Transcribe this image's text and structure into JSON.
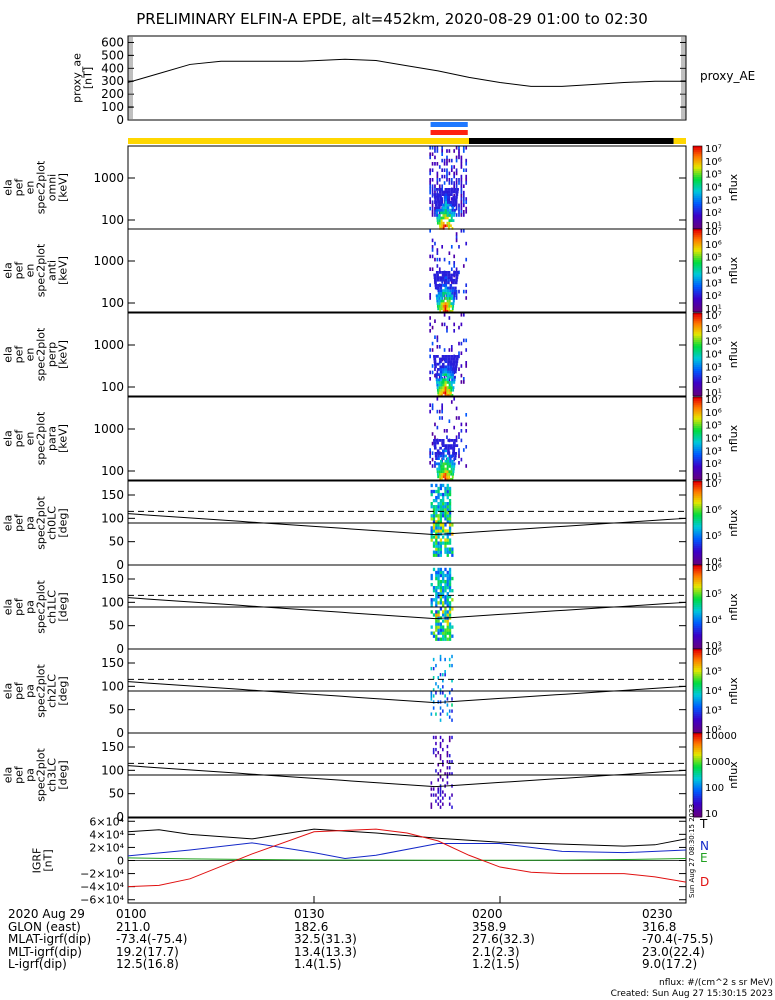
{
  "title": "PRELIMINARY ELFIN-A EPDE, alt=452km, 2020-08-29 01:00 to 02:30",
  "colors": {
    "yellow": "#ffd700",
    "blue": "#1e78ff",
    "red": "#ff2010",
    "black": "#000000",
    "T": "#000000",
    "N": "#1428c8",
    "E": "#20a020",
    "D": "#e01010"
  },
  "chart_data": [
    {
      "type": "line",
      "panel": "proxy_ae",
      "ylabel": [
        "proxy_ae",
        "[nT]"
      ],
      "right_label": "proxy_AE",
      "yticks": [
        0,
        100,
        200,
        300,
        400,
        500,
        600
      ],
      "ylim": [
        0,
        650
      ],
      "x_minutes": [
        0,
        5,
        10,
        15,
        20,
        28,
        35,
        40,
        45,
        50,
        55,
        60,
        65,
        70,
        75,
        80,
        85,
        90
      ],
      "values": [
        290,
        360,
        430,
        455,
        455,
        455,
        470,
        460,
        420,
        380,
        330,
        290,
        260,
        260,
        275,
        290,
        300,
        300
      ]
    },
    {
      "type": "heatmap",
      "panel": "spec_omni",
      "ylabel": [
        "ela",
        "pef",
        "en",
        "spec2plot",
        "omni",
        "[keV]"
      ],
      "yticks": [
        "1000",
        "100"
      ],
      "ylim": [
        50,
        7000
      ],
      "colorbar_label": "nflux",
      "colorbar_ticks": [
        "10^7",
        "10^6",
        "10^5",
        "10^4",
        "10^3",
        "10^2",
        "10^1"
      ]
    },
    {
      "type": "heatmap",
      "panel": "spec_anti",
      "ylabel": [
        "ela",
        "pef",
        "en",
        "spec2plot",
        "anti",
        "[keV]"
      ],
      "yticks": [
        "1000",
        "100"
      ],
      "ylim": [
        50,
        7000
      ],
      "colorbar_label": "nflux",
      "colorbar_ticks": [
        "10^7",
        "10^6",
        "10^5",
        "10^4",
        "10^3",
        "10^2",
        "10^1"
      ]
    },
    {
      "type": "heatmap",
      "panel": "spec_perp",
      "ylabel": [
        "ela",
        "pef",
        "en",
        "spec2plot",
        "perp",
        "[keV]"
      ],
      "yticks": [
        "1000",
        "100"
      ],
      "ylim": [
        50,
        7000
      ],
      "colorbar_label": "nflux",
      "colorbar_ticks": [
        "10^7",
        "10^6",
        "10^5",
        "10^4",
        "10^3",
        "10^2",
        "10^1"
      ]
    },
    {
      "type": "heatmap",
      "panel": "spec_para",
      "ylabel": [
        "ela",
        "pef",
        "en",
        "spec2plot",
        "para",
        "[keV]"
      ],
      "yticks": [
        "1000",
        "100"
      ],
      "ylim": [
        50,
        7000
      ],
      "colorbar_label": "nflux",
      "colorbar_ticks": [
        "10^7",
        "10^6",
        "10^5",
        "10^4",
        "10^3",
        "10^2",
        "10^1"
      ]
    },
    {
      "type": "heatmap",
      "panel": "pa_ch0",
      "ylabel": [
        "ela",
        "pef",
        "pa",
        "spec2plot",
        "ch0LC",
        "[deg]"
      ],
      "yticks": [
        0,
        50,
        100,
        150
      ],
      "ylim": [
        0,
        180
      ],
      "colorbar_label": "nflux",
      "colorbar_ticks": [
        "10^7",
        "10^6",
        "10^5",
        "10^4"
      ]
    },
    {
      "type": "heatmap",
      "panel": "pa_ch1",
      "ylabel": [
        "ela",
        "pef",
        "pa",
        "spec2plot",
        "ch1LC",
        "[deg]"
      ],
      "yticks": [
        0,
        50,
        100,
        150
      ],
      "ylim": [
        0,
        180
      ],
      "colorbar_label": "nflux",
      "colorbar_ticks": [
        "10^6",
        "10^5",
        "10^4",
        "10^3"
      ]
    },
    {
      "type": "heatmap",
      "panel": "pa_ch2",
      "ylabel": [
        "ela",
        "pef",
        "pa",
        "spec2plot",
        "ch2LC",
        "[deg]"
      ],
      "yticks": [
        0,
        50,
        100,
        150
      ],
      "ylim": [
        0,
        180
      ],
      "colorbar_label": "nflux",
      "colorbar_ticks": [
        "10^6",
        "10^5",
        "10^4",
        "10^3",
        "10^2"
      ]
    },
    {
      "type": "heatmap",
      "panel": "pa_ch3",
      "ylabel": [
        "ela",
        "pef",
        "pa",
        "spec2plot",
        "ch3LC",
        "[deg]"
      ],
      "yticks": [
        0,
        50,
        100,
        150
      ],
      "ylim": [
        0,
        180
      ],
      "colorbar_label": "nflux",
      "colorbar_ticks": [
        "10000",
        "1000",
        "100",
        "10"
      ]
    },
    {
      "type": "line",
      "panel": "igrf",
      "ylabel": [
        "IGRF",
        "[nT]"
      ],
      "yticks": [
        "6×10^4",
        "4×10^4",
        "2×10^4",
        "0",
        "−2×10^4",
        "−4×10^4",
        "−6×10^4"
      ],
      "ylim": [
        -65000,
        65000
      ],
      "series": [
        {
          "name": "T",
          "x_minutes": [
            0,
            5,
            10,
            20,
            30,
            40,
            50,
            60,
            70,
            80,
            85,
            90
          ],
          "values": [
            44000,
            47000,
            40000,
            33000,
            48000,
            42000,
            34000,
            28000,
            25000,
            22000,
            24000,
            33000
          ]
        },
        {
          "name": "N",
          "x_minutes": [
            0,
            10,
            20,
            30,
            35,
            40,
            50,
            60,
            65,
            70,
            80,
            90
          ],
          "values": [
            7000,
            16000,
            27000,
            12000,
            3000,
            8000,
            26000,
            26000,
            20000,
            14000,
            12000,
            16000
          ]
        },
        {
          "name": "E",
          "x_minutes": [
            0,
            10,
            20,
            30,
            40,
            50,
            60,
            70,
            80,
            90
          ],
          "values": [
            4000,
            2500,
            1500,
            800,
            500,
            400,
            400,
            500,
            1500,
            3000
          ]
        },
        {
          "name": "D",
          "x_minutes": [
            0,
            5,
            10,
            20,
            30,
            40,
            45,
            50,
            55,
            60,
            65,
            70,
            80,
            85,
            90
          ],
          "values": [
            -40000,
            -38000,
            -28000,
            10000,
            44000,
            48000,
            42000,
            30000,
            8000,
            -10000,
            -18000,
            -20000,
            -20000,
            -25000,
            -33000
          ]
        }
      ]
    }
  ],
  "xaxis": {
    "ticks": [
      "0100",
      "0130",
      "0200",
      "0230"
    ]
  },
  "footer_rows": [
    [
      "2020 Aug 29",
      "0100",
      "0130",
      "0200",
      "0230"
    ],
    [
      "GLON (east)",
      "211.0",
      "182.6",
      "358.9",
      "316.8"
    ],
    [
      "MLAT-igrf(dip)",
      "-73.4(-75.4)",
      "32.5(31.3)",
      "27.6(32.3)",
      "-70.4(-75.5)"
    ],
    [
      "MLT-igrf(dip)",
      "19.2(17.7)",
      "13.4(13.3)",
      "2.1(2.3)",
      "23.0(22.4)"
    ],
    [
      "L-igrf(dip)",
      "12.5(16.8)",
      "1.4(1.5)",
      "1.2(1.5)",
      "9.0(17.2)"
    ]
  ],
  "footnote_units": "nflux: #/(cm^2 s sr MeV)",
  "footnote_created": "Created: Sun Aug 27 15:30:15 2023",
  "side_stamp": "Sun Aug 27 08:30:15 2023"
}
